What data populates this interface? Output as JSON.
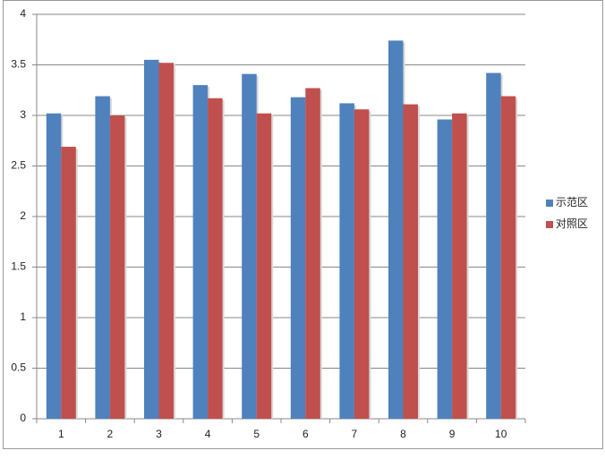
{
  "chart_data": {
    "type": "bar",
    "categories": [
      "1",
      "2",
      "3",
      "4",
      "5",
      "6",
      "7",
      "8",
      "9",
      "10"
    ],
    "series": [
      {
        "name": "示范区",
        "color": "#4f81bd",
        "values": [
          3.02,
          3.19,
          3.55,
          3.3,
          3.41,
          3.18,
          3.12,
          3.74,
          2.96,
          3.42
        ]
      },
      {
        "name": "对照区",
        "color": "#c0504d",
        "values": [
          2.69,
          3.0,
          3.52,
          3.17,
          3.02,
          3.27,
          3.06,
          3.11,
          3.02,
          3.19
        ]
      }
    ],
    "ylim": [
      0,
      4
    ],
    "yticks": [
      0,
      0.5,
      1,
      1.5,
      2,
      2.5,
      3,
      3.5,
      4
    ],
    "grid": true,
    "legend": "right"
  }
}
